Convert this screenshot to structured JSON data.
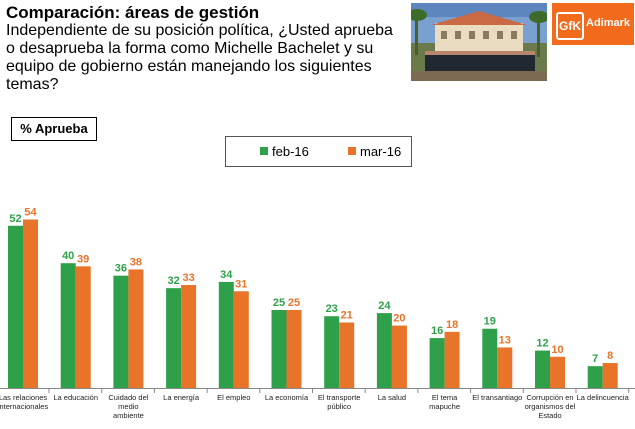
{
  "header": {
    "title": "Comparación: áreas de gestión",
    "subtitle": "Independiente de su posición política, ¿Usted aprueba o desaprueba la forma como Michelle Bachelet y su equipo de gobierno están manejando los siguientes temas?",
    "badge": "% Aprueba",
    "logo_text": "Adimark",
    "logo_mark": "GfK"
  },
  "chart_data": {
    "type": "bar",
    "title": "Comparación: áreas de gestión",
    "ylabel": "% Aprueba",
    "xlabel": "",
    "ylim": [
      0,
      60
    ],
    "grid": false,
    "legend_position": "top-center",
    "categories": [
      "Las relaciones internacionales",
      "La educación",
      "Cuidado del medio ambiente",
      "La energía",
      "El empleo",
      "La economía",
      "El transporte público",
      "La salud",
      "El tema mapuche",
      "El transantiago",
      "Corrupción en organismos del Estado",
      "La delincuencia"
    ],
    "category_lines": [
      [
        "Las relaciones",
        "internacionales"
      ],
      [
        "La educación"
      ],
      [
        "Cuidado del",
        "medio",
        "ambiente"
      ],
      [
        "La energía"
      ],
      [
        "El empleo"
      ],
      [
        "La economía"
      ],
      [
        "El transporte",
        "público"
      ],
      [
        "La salud"
      ],
      [
        "El tema",
        "mapuche"
      ],
      [
        "El transantiago"
      ],
      [
        "Corrupción en",
        "organismos del",
        "Estado"
      ],
      [
        "La delincuencia"
      ]
    ],
    "series": [
      {
        "name": "feb-16",
        "color": "#2ea04a",
        "values": [
          52,
          40,
          36,
          32,
          34,
          25,
          23,
          24,
          16,
          19,
          12,
          7
        ]
      },
      {
        "name": "mar-16",
        "color": "#e8742a",
        "values": [
          54,
          39,
          38,
          33,
          31,
          25,
          21,
          20,
          18,
          13,
          10,
          8
        ]
      }
    ]
  }
}
